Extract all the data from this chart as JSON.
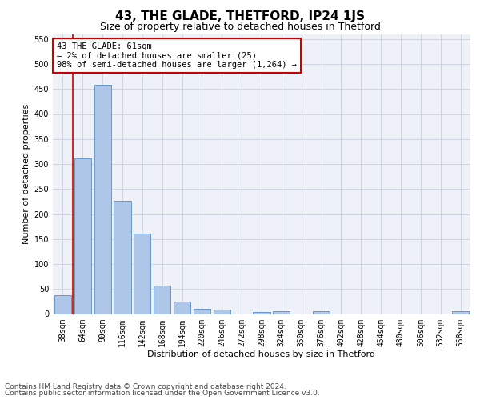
{
  "title": "43, THE GLADE, THETFORD, IP24 1JS",
  "subtitle": "Size of property relative to detached houses in Thetford",
  "xlabel": "Distribution of detached houses by size in Thetford",
  "ylabel": "Number of detached properties",
  "footer_line1": "Contains HM Land Registry data © Crown copyright and database right 2024.",
  "footer_line2": "Contains public sector information licensed under the Open Government Licence v3.0.",
  "categories": [
    "38sqm",
    "64sqm",
    "90sqm",
    "116sqm",
    "142sqm",
    "168sqm",
    "194sqm",
    "220sqm",
    "246sqm",
    "272sqm",
    "298sqm",
    "324sqm",
    "350sqm",
    "376sqm",
    "402sqm",
    "428sqm",
    "454sqm",
    "480sqm",
    "506sqm",
    "532sqm",
    "558sqm"
  ],
  "values": [
    38,
    312,
    458,
    226,
    161,
    57,
    25,
    11,
    9,
    0,
    4,
    6,
    0,
    6,
    0,
    0,
    0,
    0,
    0,
    0,
    5
  ],
  "bar_color": "#aec6e8",
  "bar_edge_color": "#5a8fc2",
  "highlight_line_color": "#cc0000",
  "annotation_line1": "43 THE GLADE: 61sqm",
  "annotation_line2": "← 2% of detached houses are smaller (25)",
  "annotation_line3": "98% of semi-detached houses are larger (1,264) →",
  "annotation_box_color": "#ffffff",
  "annotation_box_edge": "#cc0000",
  "ylim": [
    0,
    560
  ],
  "yticks": [
    0,
    50,
    100,
    150,
    200,
    250,
    300,
    350,
    400,
    450,
    500,
    550
  ],
  "grid_color": "#c8d0dc",
  "bg_color": "#eef2f8",
  "title_fontsize": 11,
  "subtitle_fontsize": 9,
  "axis_label_fontsize": 8,
  "tick_fontsize": 7,
  "footer_fontsize": 6.5
}
